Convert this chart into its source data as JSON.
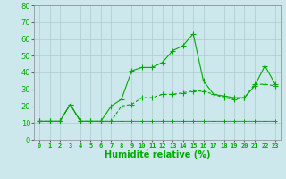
{
  "xlabel": "Humidité relative (%)",
  "background_color": "#cce8ec",
  "grid_color": "#aacccc",
  "line_color": "#00aa00",
  "xlim": [
    -0.5,
    23.5
  ],
  "ylim": [
    0,
    80
  ],
  "yticks": [
    0,
    10,
    20,
    30,
    40,
    50,
    60,
    70,
    80
  ],
  "xtick_labels": [
    "0",
    "1",
    "2",
    "3",
    "4",
    "5",
    "6",
    "7",
    "8",
    "9",
    "10",
    "11",
    "12",
    "13",
    "14",
    "15",
    "16",
    "17",
    "18",
    "19",
    "20",
    "21",
    "22",
    "23"
  ],
  "series1": [
    11,
    11,
    11,
    21,
    11,
    11,
    11,
    11,
    11,
    11,
    11,
    11,
    11,
    11,
    11,
    11,
    11,
    11,
    11,
    11,
    11,
    11,
    11,
    11
  ],
  "series2": [
    11,
    11,
    11,
    21,
    11,
    11,
    11,
    20,
    24,
    41,
    43,
    43,
    46,
    53,
    56,
    63,
    35,
    27,
    26,
    25,
    25,
    32,
    44,
    33
  ],
  "series3": [
    11,
    11,
    11,
    21,
    11,
    11,
    11,
    11,
    20,
    21,
    25,
    25,
    27,
    27,
    28,
    29,
    29,
    27,
    25,
    24,
    25,
    33,
    33,
    32
  ]
}
